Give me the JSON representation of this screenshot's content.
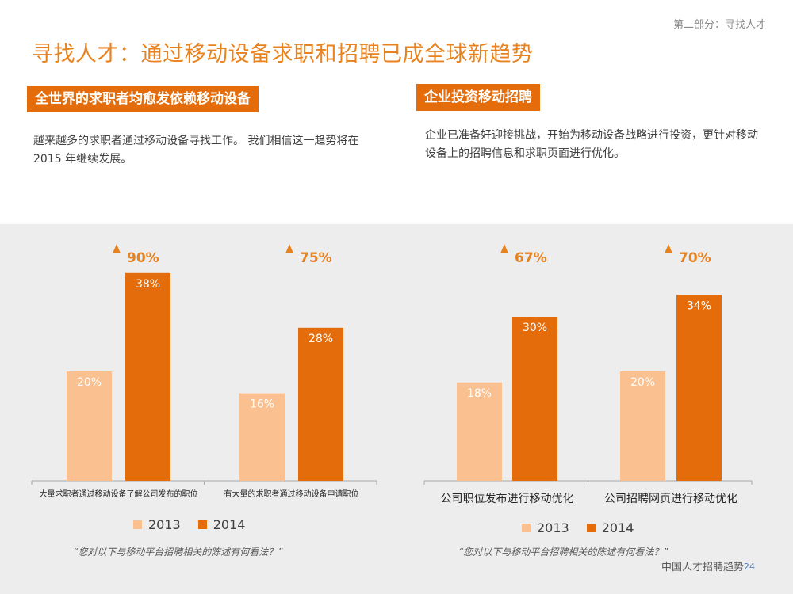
{
  "header": {
    "section_label": "第二部分：寻找人才",
    "title": "寻找人才：通过移动设备求职和招聘已成全球新趋势"
  },
  "left_block": {
    "heading": "全世界的求职者均愈发依赖移动设备",
    "text": "越来越多的求职者通过移动设备寻找工作。 我们相信这一趋势将在 2015 年继续发展。"
  },
  "right_block": {
    "heading": "企业投资移动招聘",
    "text": "企业已准备好迎接挑战，开始为移动设备战略进行投资，更针对移动设备上的招聘信息和求职页面进行优化。"
  },
  "colors": {
    "c2013": "#fac090",
    "c2014": "#e46c0a",
    "accent": "#e8821f",
    "panel": "#ededed"
  },
  "legend": [
    "2013",
    "2014"
  ],
  "question": "“您对以下与移动平台招聘相关的陈述有何看法？”",
  "footer": {
    "text": "中国人才招聘趋势",
    "page": "24"
  },
  "chart_data": [
    {
      "type": "bar",
      "categories": [
        "大量求职者通过移动设备了解公司发布的职位",
        "有大量的求职者通过移动设备申请职位"
      ],
      "series": [
        {
          "name": "2013",
          "values": [
            20,
            16
          ]
        },
        {
          "name": "2014",
          "values": [
            38,
            28
          ]
        }
      ],
      "growth": [
        "90%",
        "75%"
      ],
      "ylim": [
        0,
        40
      ],
      "legend": "bottom"
    },
    {
      "type": "bar",
      "categories": [
        "公司职位发布进行移动优化",
        "公司招聘网页进行移动优化"
      ],
      "series": [
        {
          "name": "2013",
          "values": [
            18,
            20
          ]
        },
        {
          "name": "2014",
          "values": [
            30,
            34
          ]
        }
      ],
      "growth": [
        "67%",
        "70%"
      ],
      "ylim": [
        0,
        40
      ],
      "legend": "bottom"
    }
  ]
}
